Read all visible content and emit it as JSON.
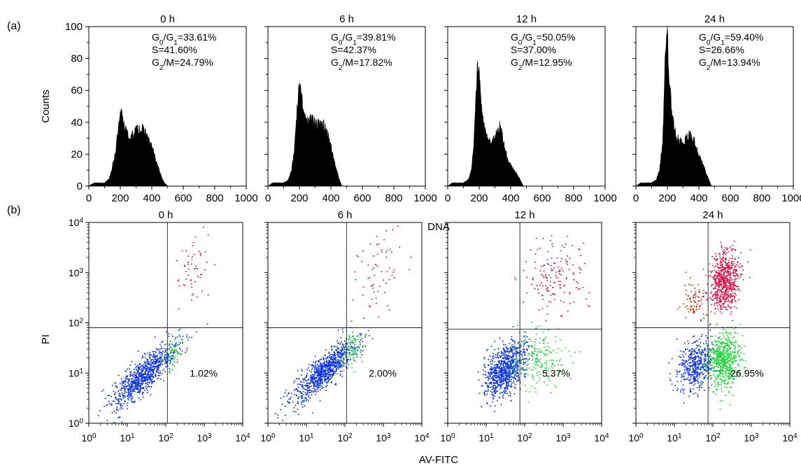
{
  "figure": {
    "panel_a_label": "(a)",
    "panel_b_label": "(b)",
    "a_xlabel": "DNA",
    "a_ylabel": "Counts",
    "b_xlabel": "AV-FITC",
    "b_ylabel": "PI"
  },
  "chart_data": [
    {
      "type": "histogram",
      "title": "0 h",
      "xlim": [
        0,
        1000
      ],
      "ylim": [
        0,
        100
      ],
      "xticks": [
        0,
        200,
        400,
        600,
        800,
        1000
      ],
      "yticks": [
        0,
        20,
        40,
        60,
        80,
        100
      ],
      "annotations": [
        {
          "prefix": "G",
          "sub1": "0",
          "mid": "/G",
          "sub2": "1",
          "value": "=33.61%"
        },
        {
          "prefix": "S",
          "value": "=41.60%"
        },
        {
          "prefix": "G",
          "sub1": "2",
          "mid": "/M",
          "value": "=24.79%"
        }
      ],
      "profile": {
        "x": [
          0,
          30,
          100,
          130,
          150,
          170,
          190,
          205,
          220,
          240,
          260,
          280,
          300,
          320,
          340,
          360,
          380,
          400,
          420,
          440,
          460,
          480,
          500,
          1000
        ],
        "y": [
          0,
          2,
          2,
          5,
          12,
          22,
          37,
          46,
          41,
          33,
          30,
          32,
          35,
          36,
          35,
          34,
          28,
          25,
          18,
          12,
          6,
          2,
          0,
          0
        ]
      }
    },
    {
      "type": "histogram",
      "title": "6 h",
      "xlim": [
        0,
        1000
      ],
      "ylim": [
        0,
        100
      ],
      "xticks": [
        0,
        200,
        400,
        600,
        800,
        1000
      ],
      "yticks": [],
      "annotations": [
        {
          "prefix": "G",
          "sub1": "0",
          "mid": "/G",
          "sub2": "1",
          "value": "=39.81%"
        },
        {
          "prefix": "S",
          "value": "=42.37%"
        },
        {
          "prefix": "G",
          "sub1": "2",
          "mid": "/M",
          "value": "=17.82%"
        }
      ],
      "profile": {
        "x": [
          0,
          30,
          100,
          130,
          150,
          170,
          185,
          200,
          215,
          230,
          250,
          270,
          290,
          310,
          330,
          350,
          370,
          390,
          410,
          430,
          450,
          470,
          1000
        ],
        "y": [
          0,
          2,
          2,
          4,
          10,
          25,
          50,
          62,
          55,
          42,
          40,
          42,
          40,
          38,
          39,
          38,
          37,
          30,
          20,
          12,
          5,
          0,
          0
        ]
      }
    },
    {
      "type": "histogram",
      "title": "12 h",
      "xlim": [
        0,
        1000
      ],
      "ylim": [
        0,
        100
      ],
      "xticks": [
        0,
        200,
        400,
        600,
        800,
        1000
      ],
      "yticks": [],
      "annotations": [
        {
          "prefix": "G",
          "sub1": "0",
          "mid": "/G",
          "sub2": "1",
          "value": "=50.05%"
        },
        {
          "prefix": "S",
          "value": "=37.00%"
        },
        {
          "prefix": "G",
          "sub1": "2",
          "mid": "/M",
          "value": "=12.95%"
        }
      ],
      "profile": {
        "x": [
          0,
          30,
          100,
          130,
          150,
          165,
          180,
          190,
          200,
          210,
          225,
          240,
          260,
          280,
          300,
          315,
          330,
          345,
          360,
          380,
          400,
          420,
          440,
          460,
          480,
          1000
        ],
        "y": [
          0,
          2,
          2,
          4,
          10,
          25,
          55,
          82,
          70,
          55,
          40,
          32,
          28,
          27,
          30,
          35,
          38,
          32,
          25,
          18,
          13,
          10,
          8,
          4,
          0,
          0
        ]
      }
    },
    {
      "type": "histogram",
      "title": "24 h",
      "xlim": [
        0,
        1000
      ],
      "ylim": [
        0,
        100
      ],
      "xticks": [
        0,
        200,
        400,
        600,
        800,
        1000
      ],
      "yticks": [],
      "annotations": [
        {
          "prefix": "G",
          "sub1": "0",
          "mid": "/G",
          "sub2": "1",
          "value": "=59.40%"
        },
        {
          "prefix": "S",
          "value": "=26.66%"
        },
        {
          "prefix": "G",
          "sub1": "2",
          "mid": "/M",
          "value": "=13.94%"
        }
      ],
      "profile": {
        "x": [
          0,
          30,
          100,
          130,
          150,
          170,
          185,
          195,
          205,
          215,
          230,
          245,
          260,
          280,
          300,
          320,
          340,
          360,
          380,
          400,
          420,
          440,
          460,
          480,
          1000
        ],
        "y": [
          0,
          2,
          2,
          4,
          10,
          28,
          75,
          100,
          85,
          62,
          45,
          36,
          30,
          28,
          28,
          30,
          32,
          30,
          26,
          20,
          15,
          10,
          5,
          0,
          0
        ]
      }
    },
    {
      "type": "scatter",
      "title": "0 h",
      "xscale": "log",
      "yscale": "log",
      "xlim": [
        1,
        10000
      ],
      "ylim": [
        1,
        10000
      ],
      "xticks": [
        1,
        10,
        100,
        1000,
        10000
      ],
      "yticks": [
        1,
        10,
        100,
        1000,
        10000
      ],
      "xtick_labels": [
        {
          "b": "10",
          "e": "0"
        },
        {
          "b": "10",
          "e": "1"
        },
        {
          "b": "10",
          "e": "2"
        },
        {
          "b": "10",
          "e": "3"
        },
        {
          "b": "10",
          "e": "4"
        }
      ],
      "ytick_labels": [
        {
          "b": "10",
          "e": "0"
        },
        {
          "b": "10",
          "e": "1"
        },
        {
          "b": "10",
          "e": "2"
        },
        {
          "b": "10",
          "e": "3"
        },
        {
          "b": "10",
          "e": "4"
        }
      ],
      "gate": {
        "x": 110,
        "y": 80
      },
      "percent": "1.02%",
      "clusters": [
        {
          "color": "#1034e0",
          "n": 900,
          "cx": 25,
          "cy": 9,
          "sx": 0.42,
          "sy": 0.32,
          "rho": 0.85
        },
        {
          "color": "#22d63a",
          "n": 60,
          "cx": 140,
          "cy": 25,
          "sx": 0.12,
          "sy": 0.2,
          "rho": 0.4
        },
        {
          "color": "#d9174a",
          "n": 55,
          "cx": 450,
          "cy": 1300,
          "sx": 0.25,
          "sy": 0.35,
          "rho": 0.3
        }
      ]
    },
    {
      "type": "scatter",
      "title": "6 h",
      "xscale": "log",
      "yscale": "log",
      "xlim": [
        1,
        10000
      ],
      "ylim": [
        1,
        10000
      ],
      "xticks": [
        1,
        10,
        100,
        1000,
        10000
      ],
      "yticks": [],
      "xtick_labels": [
        {
          "b": "10",
          "e": "0"
        },
        {
          "b": "10",
          "e": "1"
        },
        {
          "b": "10",
          "e": "2"
        },
        {
          "b": "10",
          "e": "3"
        },
        {
          "b": "10",
          "e": "4"
        }
      ],
      "ytick_labels": [],
      "gate": {
        "x": 110,
        "y": 80
      },
      "percent": "2.00%",
      "clusters": [
        {
          "color": "#1034e0",
          "n": 900,
          "cx": 28,
          "cy": 11,
          "sx": 0.42,
          "sy": 0.32,
          "rho": 0.85
        },
        {
          "color": "#22d63a",
          "n": 80,
          "cx": 150,
          "cy": 30,
          "sx": 0.15,
          "sy": 0.2,
          "rho": 0.4
        },
        {
          "color": "#d9174a",
          "n": 65,
          "cx": 700,
          "cy": 900,
          "sx": 0.3,
          "sy": 0.45,
          "rho": 0.2
        }
      ]
    },
    {
      "type": "scatter",
      "title": "12 h",
      "xscale": "log",
      "yscale": "log",
      "xlim": [
        1,
        10000
      ],
      "ylim": [
        1,
        10000
      ],
      "xticks": [
        1,
        10,
        100,
        1000,
        10000
      ],
      "yticks": [],
      "xtick_labels": [
        {
          "b": "10",
          "e": "0"
        },
        {
          "b": "10",
          "e": "1"
        },
        {
          "b": "10",
          "e": "2"
        },
        {
          "b": "10",
          "e": "3"
        },
        {
          "b": "10",
          "e": "4"
        }
      ],
      "ytick_labels": [],
      "gate": {
        "x": 75,
        "y": 75
      },
      "percent": "5.37%",
      "clusters": [
        {
          "color": "#1034e0",
          "n": 900,
          "cx": 30,
          "cy": 12,
          "sx": 0.28,
          "sy": 0.28,
          "rho": 0.5
        },
        {
          "color": "#22d63a",
          "n": 220,
          "cx": 220,
          "cy": 20,
          "sx": 0.4,
          "sy": 0.3,
          "rho": 0.1
        },
        {
          "color": "#d9174a",
          "n": 160,
          "cx": 600,
          "cy": 800,
          "sx": 0.4,
          "sy": 0.4,
          "rho": 0.0
        }
      ]
    },
    {
      "type": "scatter",
      "title": "24 h",
      "xscale": "log",
      "yscale": "log",
      "xlim": [
        1,
        10000
      ],
      "ylim": [
        1,
        10000
      ],
      "xticks": [
        1,
        10,
        100,
        1000,
        10000
      ],
      "yticks": [],
      "xtick_labels": [
        {
          "b": "10",
          "e": "0"
        },
        {
          "b": "10",
          "e": "1"
        },
        {
          "b": "10",
          "e": "2"
        },
        {
          "b": "10",
          "e": "3"
        },
        {
          "b": "10",
          "e": "4"
        }
      ],
      "ytick_labels": [],
      "gate": {
        "x": 75,
        "y": 80
      },
      "percent": "26.95%",
      "clusters": [
        {
          "color": "#1034e0",
          "n": 500,
          "cx": 35,
          "cy": 15,
          "sx": 0.25,
          "sy": 0.25,
          "rho": 0.3
        },
        {
          "color": "#22d63a",
          "n": 650,
          "cx": 180,
          "cy": 18,
          "sx": 0.22,
          "sy": 0.28,
          "rho": 0.2
        },
        {
          "color": "#d9174a",
          "n": 700,
          "cx": 200,
          "cy": 700,
          "sx": 0.2,
          "sy": 0.3,
          "rho": 0.2
        },
        {
          "color": "#c0391b",
          "n": 80,
          "cx": 30,
          "cy": 300,
          "sx": 0.15,
          "sy": 0.2,
          "rho": 0.0
        }
      ]
    }
  ]
}
